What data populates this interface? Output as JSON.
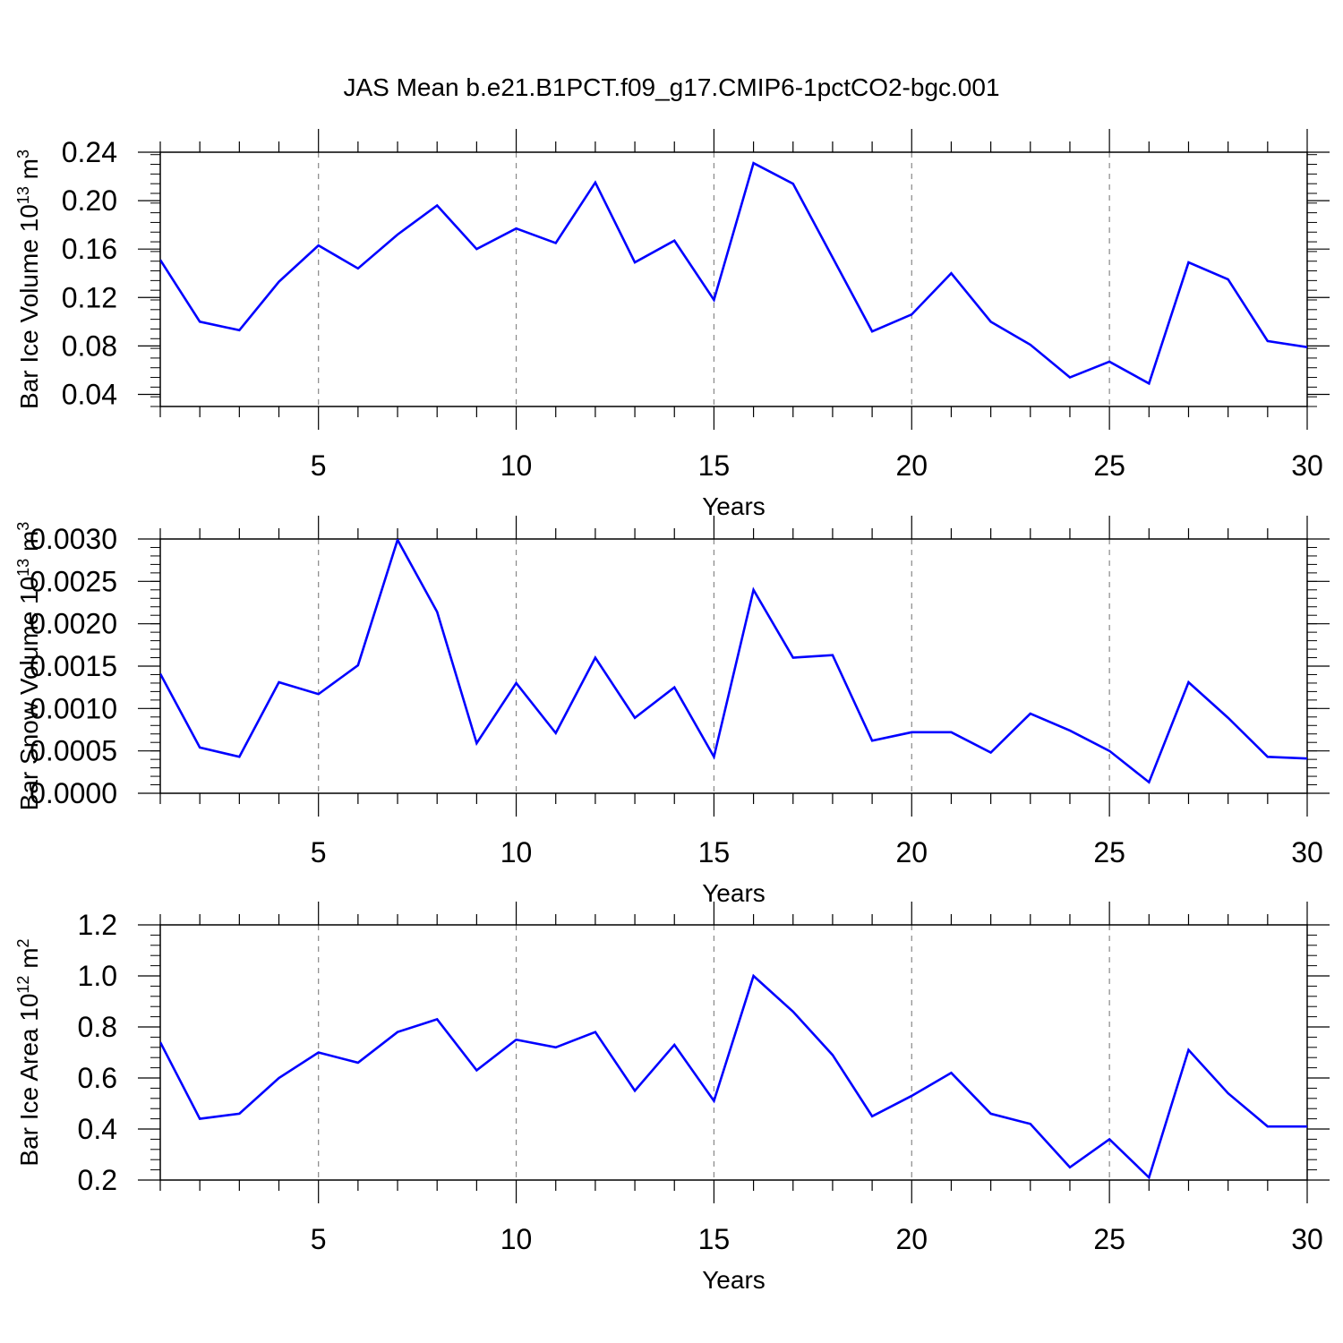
{
  "chart_data": {
    "title": "JAS Mean b.e21.B1PCT.f09_g17.CMIP6-1pctCO2-bgc.001",
    "line_color": "#0000ff",
    "x": [
      1,
      2,
      3,
      4,
      5,
      6,
      7,
      8,
      9,
      10,
      11,
      12,
      13,
      14,
      15,
      16,
      17,
      18,
      19,
      20,
      21,
      22,
      23,
      24,
      25,
      26,
      27,
      28,
      29,
      30
    ],
    "xlim": [
      1,
      30
    ],
    "x_major_ticks": [
      5,
      10,
      15,
      20,
      25,
      30
    ],
    "x_tick_labels": [
      "5",
      "10",
      "15",
      "20",
      "25",
      "30"
    ],
    "panels": [
      {
        "type": "line",
        "xlabel": "Years",
        "ylabel_main": "Bar Ice Volume 10",
        "ylabel_exp": "13",
        "ylabel_unit": " m",
        "ylabel_unit_exp": "3",
        "ylim": [
          0.03,
          0.24
        ],
        "y_major_ticks": [
          0.04,
          0.08,
          0.12,
          0.16,
          0.2,
          0.24
        ],
        "y_tick_labels": [
          "0.04",
          "0.08",
          "0.12",
          "0.16",
          "0.20",
          "0.24"
        ],
        "y_minor_step": 0.008,
        "values": [
          0.151,
          0.1,
          0.093,
          0.133,
          0.163,
          0.144,
          0.172,
          0.196,
          0.16,
          0.177,
          0.165,
          0.215,
          0.149,
          0.167,
          0.118,
          0.231,
          0.214,
          0.153,
          0.092,
          0.106,
          0.14,
          0.1,
          0.081,
          0.054,
          0.067,
          0.049,
          0.149,
          0.135,
          0.084,
          0.079
        ]
      },
      {
        "type": "line",
        "xlabel": "Years",
        "ylabel_main": "Bar Snow Volume 10",
        "ylabel_exp": "13",
        "ylabel_unit": " m",
        "ylabel_unit_exp": "3",
        "ylim": [
          0.0,
          0.003
        ],
        "y_major_ticks": [
          0.0,
          0.0005,
          0.001,
          0.0015,
          0.002,
          0.0025,
          0.003
        ],
        "y_tick_labels": [
          "0.0000",
          "0.0005",
          "0.0010",
          "0.0015",
          "0.0020",
          "0.0025",
          "0.0030"
        ],
        "y_minor_step": 0.0001,
        "values": [
          0.00141,
          0.00054,
          0.00043,
          0.00131,
          0.00117,
          0.00151,
          0.00299,
          0.00214,
          0.00059,
          0.0013,
          0.00071,
          0.0016,
          0.00089,
          0.00125,
          0.00043,
          0.0024,
          0.0016,
          0.00163,
          0.00062,
          0.00072,
          0.00072,
          0.00048,
          0.00094,
          0.00074,
          0.0005,
          0.00013,
          0.00131,
          0.00089,
          0.00043,
          0.00041
        ]
      },
      {
        "type": "line",
        "xlabel": "Years",
        "ylabel_main": "Bar Ice Area 10",
        "ylabel_exp": "12",
        "ylabel_unit": " m",
        "ylabel_unit_exp": "2",
        "ylim": [
          0.2,
          1.2
        ],
        "y_major_ticks": [
          0.2,
          0.4,
          0.6,
          0.8,
          1.0,
          1.2
        ],
        "y_tick_labels": [
          "0.2",
          "0.4",
          "0.6",
          "0.8",
          "1.0",
          "1.2"
        ],
        "y_minor_step": 0.04,
        "values": [
          0.74,
          0.44,
          0.46,
          0.6,
          0.7,
          0.66,
          0.78,
          0.83,
          0.63,
          0.75,
          0.72,
          0.78,
          0.55,
          0.73,
          0.51,
          1.0,
          0.86,
          0.69,
          0.45,
          0.53,
          0.62,
          0.46,
          0.42,
          0.25,
          0.36,
          0.21,
          0.71,
          0.54,
          0.41,
          0.41
        ]
      }
    ]
  }
}
